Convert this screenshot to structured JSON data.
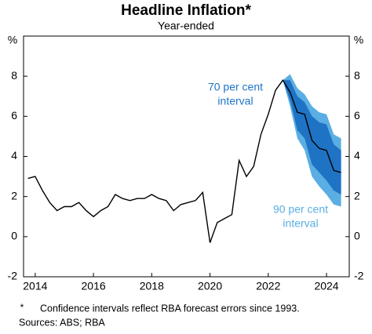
{
  "chart_data": {
    "type": "line",
    "title": "Headline Inflation*",
    "subtitle": "Year-ended",
    "y_unit": "%",
    "x": [
      2013.75,
      2014,
      2014.25,
      2014.5,
      2014.75,
      2015,
      2015.25,
      2015.5,
      2015.75,
      2016,
      2016.25,
      2016.5,
      2016.75,
      2017,
      2017.25,
      2017.5,
      2017.75,
      2018,
      2018.25,
      2018.5,
      2018.75,
      2019,
      2019.25,
      2019.5,
      2019.75,
      2020,
      2020.25,
      2020.5,
      2020.75,
      2021,
      2021.25,
      2021.5,
      2021.75,
      2022,
      2022.25,
      2022.5,
      2022.75,
      2023,
      2023.25,
      2023.5,
      2023.75,
      2024,
      2024.25,
      2024.5
    ],
    "values": [
      2.9,
      3.0,
      2.3,
      1.7,
      1.3,
      1.5,
      1.5,
      1.7,
      1.3,
      1.0,
      1.3,
      1.5,
      2.1,
      1.9,
      1.8,
      1.9,
      1.9,
      2.1,
      1.9,
      1.8,
      1.3,
      1.6,
      1.7,
      1.8,
      2.2,
      -0.3,
      0.7,
      0.9,
      1.1,
      3.8,
      3.0,
      3.5,
      5.1,
      6.1,
      7.3,
      7.8,
      7.2,
      6.2,
      6.1,
      4.8,
      4.4,
      4.3,
      3.3,
      3.2
    ],
    "color": "#000000",
    "band_x": [
      2022.5,
      2022.75,
      2023,
      2023.25,
      2023.5,
      2023.75,
      2024,
      2024.25,
      2024.5
    ],
    "intervals": [
      {
        "label": [
          "90 per cent",
          "interval"
        ],
        "color": "#5aaee3",
        "lower": [
          7.8,
          6.5,
          4.9,
          4.3,
          3.0,
          2.5,
          2.1,
          1.6,
          1.5
        ],
        "upper": [
          7.8,
          8.1,
          7.4,
          7.1,
          6.5,
          6.2,
          6.1,
          5.1,
          4.9
        ]
      },
      {
        "label": [
          "70 per cent",
          "interval"
        ],
        "color": "#1e73c4",
        "lower": [
          7.8,
          6.8,
          5.3,
          4.9,
          3.6,
          3.2,
          2.8,
          2.3,
          2.1
        ],
        "upper": [
          7.8,
          7.8,
          7.0,
          6.7,
          6.0,
          5.7,
          5.6,
          4.6,
          4.3
        ]
      }
    ],
    "xlim": [
      2013.6,
      2024.78
    ],
    "xticks": [
      2014,
      2016,
      2018,
      2020,
      2022,
      2024
    ],
    "ylim": [
      -2,
      10
    ],
    "yticks": [
      -2,
      0,
      2,
      4,
      6,
      8
    ],
    "grid": false,
    "footnote": {
      "marker": "*",
      "text": "Confidence intervals reflect RBA forecast errors since 1993."
    },
    "sources": "Sources: ABS; RBA"
  }
}
